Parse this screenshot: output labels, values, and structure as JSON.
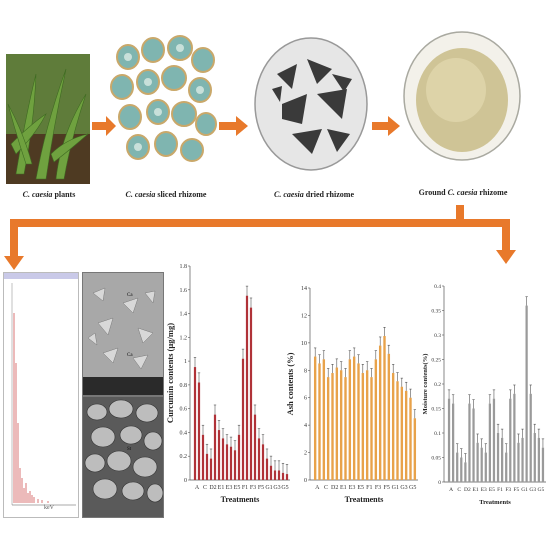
{
  "process": {
    "steps": [
      {
        "id": "plants",
        "prefix": "",
        "species": "C. caesia",
        "suffix": " plants"
      },
      {
        "id": "sliced",
        "prefix": "",
        "species": "C. caesia",
        "suffix": " sliced rhizome"
      },
      {
        "id": "dried",
        "prefix": "",
        "species": "C. caesia",
        "suffix": " dried rhizome"
      },
      {
        "id": "ground",
        "prefix": "Ground ",
        "species": "C. caesia",
        "suffix": " rhizome"
      }
    ],
    "arrow_color": "#e8792b"
  },
  "chart_data": [
    {
      "type": "bar",
      "series_color": "#b03238",
      "xlabel": "Treatments",
      "ylabel": "Curcumin contents (µg/mg)",
      "ylim": [
        0,
        1.8
      ],
      "yticks": [
        "0",
        "0.2",
        "0.4",
        "0.6",
        "0.8",
        "1",
        "1.2",
        "1.4",
        "1.6",
        "1.8"
      ],
      "x_tick_labels": [
        "A",
        "C",
        "D2",
        "E1",
        "E3",
        "E5",
        "F1",
        "F3",
        "F5",
        "G1",
        "G3",
        "G5"
      ],
      "values": [
        0.95,
        0.82,
        0.38,
        0.22,
        0.18,
        0.55,
        0.42,
        0.35,
        0.3,
        0.28,
        0.25,
        0.38,
        1.02,
        1.55,
        1.45,
        0.55,
        0.35,
        0.3,
        0.18,
        0.12,
        0.08,
        0.08,
        0.06,
        0.05
      ]
    },
    {
      "type": "bar",
      "series_color": "#e8a24a",
      "xlabel": "Treatments",
      "ylabel": "Ash contents (%)",
      "ylim": [
        0,
        14
      ],
      "yticks": [
        "0",
        "2",
        "4",
        "6",
        "8",
        "10",
        "12",
        "14"
      ],
      "x_tick_labels": [
        "A",
        "C",
        "D2",
        "E1",
        "E3",
        "E5",
        "F1",
        "F3",
        "F5",
        "G1",
        "G3",
        "G5"
      ],
      "values": [
        9.0,
        8.5,
        8.8,
        7.5,
        7.8,
        8.2,
        8.0,
        7.5,
        8.8,
        9.0,
        8.5,
        7.8,
        8.0,
        7.5,
        8.8,
        9.8,
        10.5,
        9.2,
        7.8,
        7.2,
        6.8,
        6.5,
        6.0,
        4.5
      ]
    },
    {
      "type": "bar",
      "series_color": "#9a9a9a",
      "xlabel": "Treatments",
      "ylabel": "Moisture contents(%)",
      "ylim": [
        0,
        0.4
      ],
      "yticks": [
        "0",
        "0.05",
        "0.1",
        "0.15",
        "0.2",
        "0.25",
        "0.3",
        "0.35",
        "0.4"
      ],
      "x_tick_labels": [
        "A",
        "C",
        "D2",
        "E1",
        "E3",
        "E5",
        "F1",
        "F3",
        "F5",
        "G1",
        "G3",
        "G5"
      ],
      "values": [
        0.17,
        0.16,
        0.06,
        0.05,
        0.04,
        0.16,
        0.15,
        0.08,
        0.07,
        0.06,
        0.16,
        0.17,
        0.1,
        0.09,
        0.06,
        0.17,
        0.18,
        0.08,
        0.09,
        0.36,
        0.18,
        0.1,
        0.09,
        0.07
      ]
    }
  ],
  "edx": {
    "xaxis_label": "keV",
    "peaks_color": "#c83a3a"
  },
  "sem": {
    "top_tags": [
      "Ca",
      "Ca"
    ],
    "bottom_tags": [
      "St"
    ]
  }
}
